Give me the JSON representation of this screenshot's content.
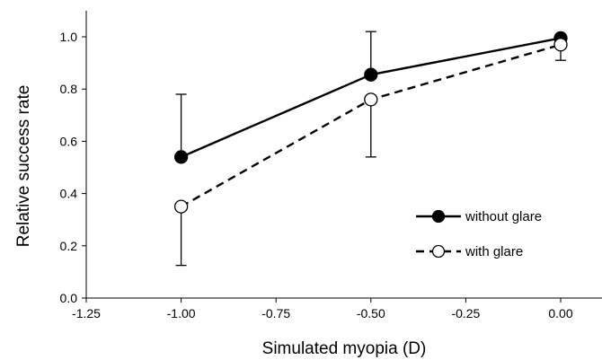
{
  "chart_data": {
    "type": "line",
    "xlabel": "Simulated myopia (D)",
    "ylabel": "Relative success rate",
    "xlim": [
      -1.25,
      0.1
    ],
    "ylim": [
      0.0,
      1.0
    ],
    "xticks": [
      "-1.25",
      "-1.00",
      "-0.75",
      "-0.50",
      "-0.25",
      "0.00"
    ],
    "yticks": [
      "0.0",
      "0.2",
      "0.4",
      "0.6",
      "0.8",
      "1.0"
    ],
    "xtick_values": [
      -1.25,
      -1.0,
      -0.75,
      -0.5,
      -0.25,
      0.0
    ],
    "ytick_values": [
      0.0,
      0.2,
      0.4,
      0.6,
      0.8,
      1.0
    ],
    "grid": false,
    "legend_position": "right",
    "series": [
      {
        "name": "without glare",
        "marker": "filled-circle",
        "line_style": "solid",
        "x": [
          -1.0,
          -0.5,
          0.0
        ],
        "y": [
          0.54,
          0.855,
          0.995
        ],
        "error_upper": [
          0.78,
          1.02,
          1.0
        ],
        "error_lower": [
          0.54,
          0.855,
          0.995
        ]
      },
      {
        "name": "with glare",
        "marker": "open-circle",
        "line_style": "dashed",
        "x": [
          -1.0,
          -0.5,
          0.0
        ],
        "y": [
          0.35,
          0.76,
          0.97
        ],
        "error_upper": [
          0.35,
          0.76,
          0.97
        ],
        "error_lower": [
          0.125,
          0.54,
          0.91
        ]
      }
    ]
  }
}
